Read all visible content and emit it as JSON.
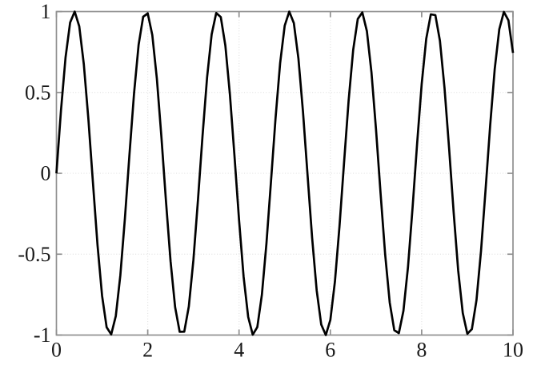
{
  "figure": {
    "background": "#ffffff",
    "axis_color": "#8f8f8f",
    "grid_color": "#e2e2e2",
    "tick_label_color": "#1a1a1a",
    "curve_color": "#000000"
  },
  "chart_data": {
    "type": "line",
    "title": "",
    "xlabel": "",
    "ylabel": "",
    "x_range": [
      0,
      10
    ],
    "y_range": [
      -1,
      1
    ],
    "x_ticks": {
      "values": [
        0,
        2,
        4,
        6,
        8,
        10
      ],
      "labels": [
        "0",
        "2",
        "4",
        "6",
        "8",
        "10"
      ]
    },
    "y_ticks": {
      "values": [
        -1,
        -0.5,
        0,
        0.5,
        1
      ],
      "labels": [
        "-1",
        "-0.5",
        "0",
        "0.5",
        "1"
      ]
    },
    "grid": "on",
    "grid_style": "dotted",
    "box": "on",
    "legend": "none",
    "series": [
      {
        "name": "",
        "color": "#000000",
        "line_width": 2.7,
        "x_start": 0,
        "x_step": 0.1,
        "y": [
          0,
          0.389,
          0.717,
          0.932,
          1.0,
          0.909,
          0.675,
          0.335,
          -0.058,
          -0.443,
          -0.757,
          -0.952,
          -0.996,
          -0.883,
          -0.631,
          -0.279,
          0.117,
          0.494,
          0.794,
          0.968,
          0.989,
          0.855,
          0.585,
          0.223,
          -0.174,
          -0.544,
          -0.828,
          -0.98,
          -0.979,
          -0.823,
          -0.537,
          -0.166,
          0.231,
          0.593,
          0.859,
          0.991,
          0.966,
          0.79,
          0.487,
          0.107,
          -0.288,
          -0.64,
          -0.888,
          -0.998,
          -0.951,
          -0.751,
          -0.434,
          -0.049,
          0.343,
          0.682,
          0.913,
          1.0,
          0.929,
          0.711,
          0.382,
          -0.009,
          -0.397,
          -0.723,
          -0.935,
          -1.0,
          -0.906,
          -0.669,
          -0.327,
          0.067,
          0.45,
          0.763,
          0.954,
          0.995,
          0.879,
          0.625,
          0.271,
          -0.125,
          -0.501,
          -0.799,
          -0.97,
          -0.988,
          -0.851,
          -0.58,
          -0.215,
          0.183,
          0.551,
          0.832,
          0.983,
          0.978,
          0.819,
          0.529,
          0.157,
          -0.24,
          -0.602,
          -0.864,
          -0.992,
          -0.963,
          -0.785,
          -0.479,
          -0.099,
          0.296,
          0.645,
          0.891,
          0.998,
          0.946,
          0.745
        ]
      }
    ]
  }
}
